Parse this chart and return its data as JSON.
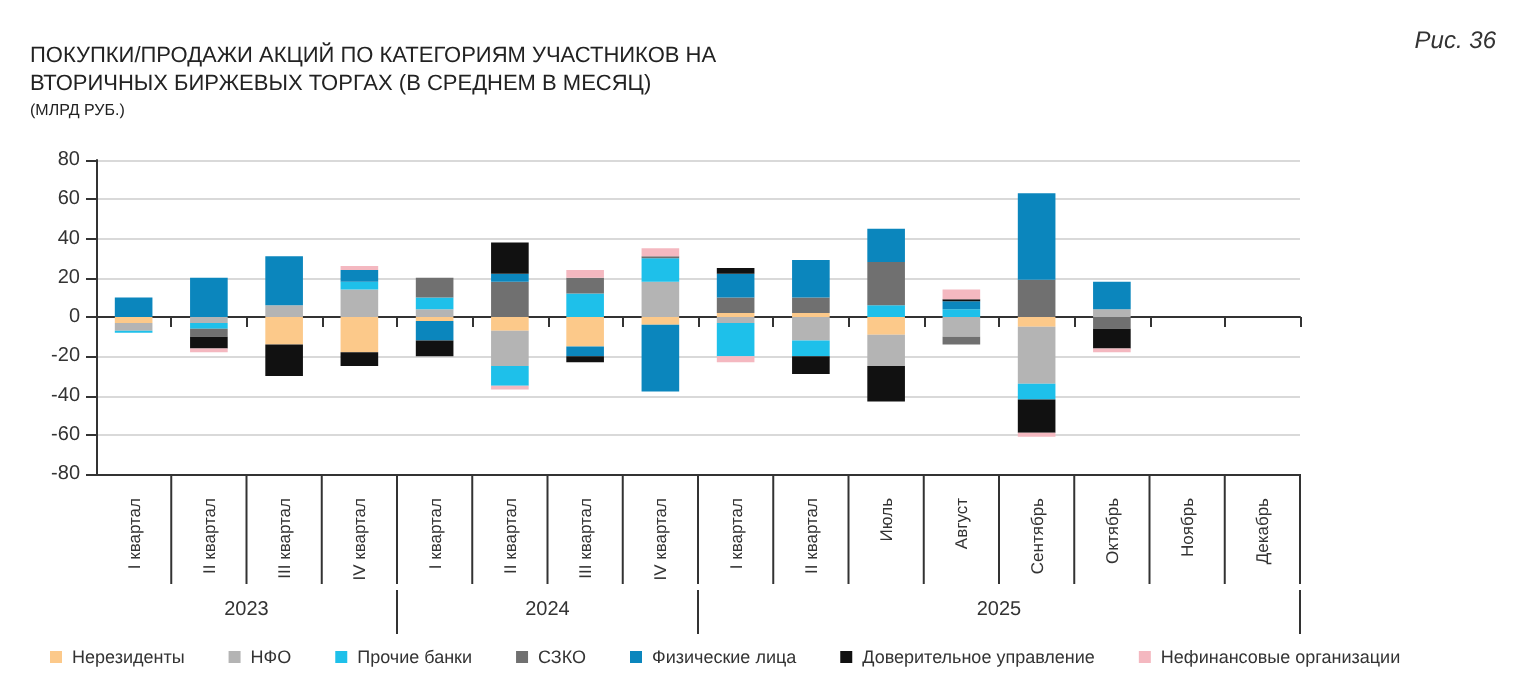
{
  "chart_data": {
    "type": "bar",
    "stacked": true,
    "title": "ПОКУПКИ/ПРОДАЖИ АКЦИЙ ПО КАТЕГОРИЯМ УЧАСТНИКОВ НА ВТОРИЧНЫХ БИРЖЕВЫХ ТОРГАХ (В СРЕДНЕМ В МЕСЯЦ)",
    "subtitle": "(МЛРД РУБ.)",
    "annotations": [
      "Рис. 36",
      "2023",
      "2024",
      "2025"
    ],
    "categories": [
      "I квартал",
      "II квартал",
      "III квартал",
      "IV квартал",
      "I квартал",
      "II квартал",
      "III квартал",
      "IV квартал",
      "I квартал",
      "II квартал",
      "Июль",
      "Август",
      "Сентябрь",
      "Октябрь",
      "Ноябрь",
      "Декабрь"
    ],
    "series": [
      {
        "name": "Нерезиденты",
        "color": "#fcc98a",
        "values": [
          -3,
          0,
          -14,
          -18,
          -2,
          -7,
          -15,
          -4,
          2,
          2,
          -9,
          0,
          -5,
          0,
          null,
          null
        ]
      },
      {
        "name": "НФО",
        "color": "#b4b4b4",
        "values": [
          -4,
          -3,
          6,
          14,
          4,
          -18,
          0,
          18,
          -3,
          -12,
          -16,
          -10,
          -29,
          4,
          null,
          null
        ]
      },
      {
        "name": "Прочие банки",
        "color": "#1ec0ea",
        "values": [
          -1,
          -3,
          0,
          4,
          6,
          -10,
          12,
          12,
          -17,
          -8,
          6,
          4,
          -8,
          0,
          null,
          null
        ]
      },
      {
        "name": "СЗКО",
        "color": "#707070",
        "values": [
          0,
          -4,
          0,
          0,
          10,
          18,
          8,
          1,
          8,
          8,
          22,
          -4,
          19,
          -6,
          null,
          null
        ]
      },
      {
        "name": "Физические лица",
        "color": "#0b86bd",
        "values": [
          10,
          20,
          25,
          6,
          -10,
          4,
          -5,
          -34,
          12,
          19,
          17,
          4,
          44,
          14,
          null,
          null
        ]
      },
      {
        "name": "Доверительное управление",
        "color": "#111111",
        "values": [
          0,
          -6,
          -16,
          -7,
          -8,
          16,
          -3,
          0,
          3,
          -9,
          -18,
          1,
          -17,
          -10,
          null,
          null
        ]
      },
      {
        "name": "Нефинансовые организации",
        "color": "#f4b8c0",
        "values": [
          0,
          -2,
          0,
          2,
          0,
          -2,
          4,
          4,
          -3,
          0,
          0,
          5,
          -2,
          -2,
          null,
          null
        ]
      }
    ],
    "ylim": [
      -80,
      80
    ],
    "yticks": [
      -80,
      -60,
      -40,
      -20,
      0,
      20,
      40,
      60,
      80
    ],
    "grid": "y",
    "legend": "bottom"
  }
}
